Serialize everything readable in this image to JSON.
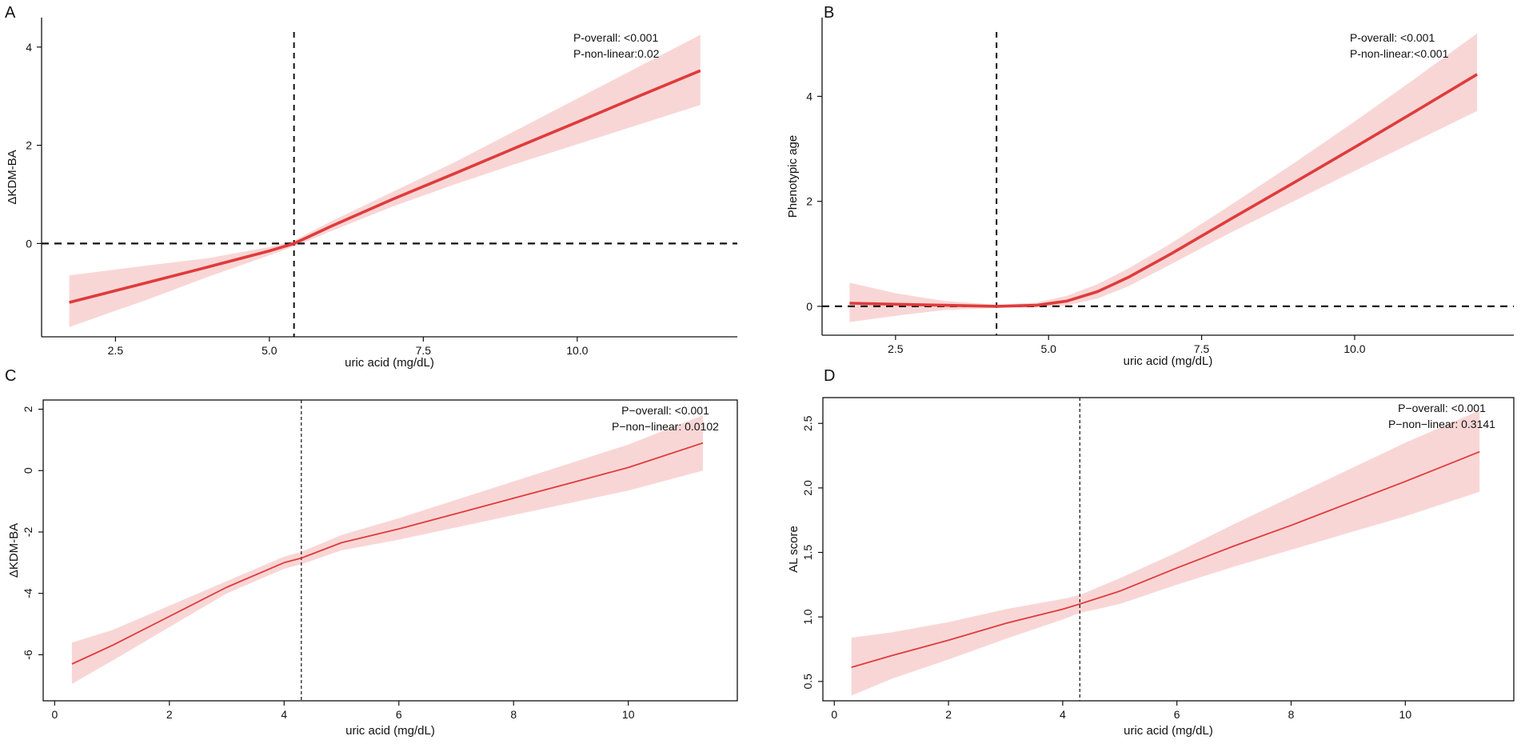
{
  "colors": {
    "line": "#e03b3b",
    "band": "#f9d6d6",
    "axis": "#111111",
    "reference": "#111111"
  },
  "chart_data": [
    {
      "type": "line",
      "panel": "A",
      "xlabel": "uric acid (mg/dL)",
      "ylabel": "ΔKDM-BA",
      "xlim": [
        1.3,
        12.6
      ],
      "ylim": [
        -1.9,
        4.6
      ],
      "xticks": [
        2.5,
        5.0,
        7.5,
        10.0
      ],
      "xtick_labels": [
        "2.5",
        "5.0",
        "7.5",
        "10.0"
      ],
      "yticks": [
        0,
        2,
        4
      ],
      "ytick_labels": [
        "0",
        "2",
        "4"
      ],
      "box": "left-bottom",
      "stroke": "thick",
      "vline": 5.4,
      "hline": 0,
      "annotation": [
        "P-overall: <0.001",
        "P-non-linear:0.02"
      ],
      "series": [
        {
          "name": "estimate",
          "x": [
            1.75,
            3,
            4,
            5,
            5.4,
            6,
            7,
            8,
            9,
            10,
            11,
            12
          ],
          "y": [
            -1.2,
            -0.8,
            -0.48,
            -0.15,
            0.0,
            0.35,
            0.9,
            1.42,
            1.95,
            2.47,
            3.0,
            3.52
          ]
        },
        {
          "name": "ci_upper",
          "x": [
            1.75,
            3,
            4,
            5,
            5.4,
            6,
            7,
            8,
            9,
            10,
            11,
            12
          ],
          "y": [
            -0.65,
            -0.45,
            -0.3,
            -0.07,
            0.06,
            0.45,
            1.05,
            1.65,
            2.3,
            2.95,
            3.6,
            4.25
          ]
        },
        {
          "name": "ci_lower",
          "x": [
            1.75,
            3,
            4,
            5,
            5.4,
            6,
            7,
            8,
            9,
            10,
            11,
            12
          ],
          "y": [
            -1.7,
            -1.15,
            -0.68,
            -0.24,
            -0.06,
            0.25,
            0.75,
            1.2,
            1.62,
            2.02,
            2.42,
            2.82
          ]
        }
      ]
    },
    {
      "type": "line",
      "panel": "B",
      "xlabel": "uric acid (mg/dL)",
      "ylabel": "Phenotypic age",
      "xlim": [
        1.3,
        12.6
      ],
      "ylim": [
        -0.55,
        5.5
      ],
      "xticks": [
        2.5,
        5.0,
        7.5,
        10.0
      ],
      "xtick_labels": [
        "2.5",
        "5.0",
        "7.5",
        "10.0"
      ],
      "yticks": [
        0,
        2,
        4
      ],
      "ytick_labels": [
        "0",
        "2",
        "4"
      ],
      "box": "left-bottom",
      "stroke": "thick",
      "vline": 4.15,
      "hline": 0,
      "annotation": [
        "P-overall: <0.001",
        "P-non-linear:<0.001"
      ],
      "series": [
        {
          "name": "estimate",
          "x": [
            1.75,
            2.5,
            3.3,
            4.15,
            4.8,
            5.3,
            5.8,
            6.3,
            7,
            8,
            9,
            10,
            11,
            12
          ],
          "y": [
            0.06,
            0.04,
            0.02,
            0.0,
            0.02,
            0.1,
            0.28,
            0.55,
            1.0,
            1.68,
            2.35,
            3.03,
            3.72,
            4.42
          ]
        },
        {
          "name": "ci_upper",
          "x": [
            1.75,
            2.5,
            3.3,
            4.15,
            4.8,
            5.3,
            5.8,
            6.3,
            7,
            8,
            9,
            10,
            11,
            12
          ],
          "y": [
            0.45,
            0.25,
            0.1,
            0.03,
            0.07,
            0.2,
            0.42,
            0.72,
            1.2,
            1.95,
            2.72,
            3.52,
            4.35,
            5.2
          ]
        },
        {
          "name": "ci_lower",
          "x": [
            1.75,
            2.5,
            3.3,
            4.15,
            4.8,
            5.3,
            5.8,
            6.3,
            7,
            8,
            9,
            10,
            11,
            12
          ],
          "y": [
            -0.3,
            -0.18,
            -0.07,
            -0.03,
            -0.02,
            0.02,
            0.15,
            0.38,
            0.8,
            1.42,
            2.0,
            2.58,
            3.15,
            3.72
          ]
        }
      ]
    },
    {
      "type": "line",
      "panel": "C",
      "xlabel": "uric acid (mg/dL)",
      "ylabel": "ΔKDM-BA",
      "xlim": [
        -0.2,
        11.9
      ],
      "ylim": [
        -7.5,
        2.3
      ],
      "xticks": [
        0,
        2,
        4,
        6,
        8,
        10
      ],
      "xtick_labels": [
        "0",
        "2",
        "4",
        "6",
        "8",
        "10"
      ],
      "yticks": [
        -6,
        -4,
        -2,
        0,
        2
      ],
      "ytick_labels": [
        "-6",
        "-4",
        "-2",
        "0",
        "2"
      ],
      "box": "full",
      "stroke": "thin",
      "vline": 4.3,
      "hline": null,
      "annotation": [
        "P−overall: <0.001",
        "P−non−linear: 0.0102"
      ],
      "series": [
        {
          "name": "estimate",
          "x": [
            0.3,
            1,
            2,
            3,
            4,
            4.3,
            5,
            6,
            7,
            8,
            9,
            10,
            11.3
          ],
          "y": [
            -6.3,
            -5.7,
            -4.75,
            -3.8,
            -3.0,
            -2.85,
            -2.35,
            -1.9,
            -1.4,
            -0.9,
            -0.4,
            0.1,
            0.9
          ]
        },
        {
          "name": "ci_upper",
          "x": [
            0.3,
            1,
            2,
            3,
            4,
            4.3,
            5,
            6,
            7,
            8,
            9,
            10,
            11.3
          ],
          "y": [
            -5.6,
            -5.2,
            -4.4,
            -3.6,
            -2.8,
            -2.65,
            -2.1,
            -1.55,
            -0.95,
            -0.35,
            0.25,
            0.85,
            1.8
          ]
        },
        {
          "name": "ci_lower",
          "x": [
            0.3,
            1,
            2,
            3,
            4,
            4.3,
            5,
            6,
            7,
            8,
            9,
            10,
            11.3
          ],
          "y": [
            -6.95,
            -6.2,
            -5.1,
            -4.0,
            -3.2,
            -3.05,
            -2.6,
            -2.25,
            -1.85,
            -1.45,
            -1.05,
            -0.65,
            0.0
          ]
        }
      ]
    },
    {
      "type": "line",
      "panel": "D",
      "xlabel": "uric acid (mg/dL)",
      "ylabel": "AL score",
      "xlim": [
        -0.2,
        11.9
      ],
      "ylim": [
        0.35,
        2.7
      ],
      "xticks": [
        0,
        2,
        4,
        6,
        8,
        10
      ],
      "xtick_labels": [
        "0",
        "2",
        "4",
        "6",
        "8",
        "10"
      ],
      "yticks": [
        0.5,
        1.0,
        1.5,
        2.0,
        2.5
      ],
      "ytick_labels": [
        "0.5",
        "1.0",
        "1.5",
        "2.0",
        "2.5"
      ],
      "box": "full",
      "stroke": "thin",
      "vline": 4.3,
      "hline": null,
      "annotation": [
        "P−overall: <0.001",
        "P−non−linear: 0.3141"
      ],
      "series": [
        {
          "name": "estimate",
          "x": [
            0.3,
            1,
            2,
            3,
            4,
            4.3,
            5,
            6,
            7,
            8,
            9,
            10,
            11.3
          ],
          "y": [
            0.61,
            0.7,
            0.82,
            0.95,
            1.06,
            1.1,
            1.2,
            1.38,
            1.55,
            1.71,
            1.88,
            2.05,
            2.28
          ]
        },
        {
          "name": "ci_upper",
          "x": [
            0.3,
            1,
            2,
            3,
            4,
            4.3,
            5,
            6,
            7,
            8,
            9,
            10,
            11.3
          ],
          "y": [
            0.84,
            0.88,
            0.96,
            1.06,
            1.14,
            1.17,
            1.3,
            1.5,
            1.72,
            1.93,
            2.14,
            2.35,
            2.6
          ]
        },
        {
          "name": "ci_lower",
          "x": [
            0.3,
            1,
            2,
            3,
            4,
            4.3,
            5,
            6,
            7,
            8,
            9,
            10,
            11.3
          ],
          "y": [
            0.39,
            0.52,
            0.67,
            0.83,
            0.98,
            1.03,
            1.1,
            1.25,
            1.39,
            1.52,
            1.65,
            1.78,
            1.97
          ]
        }
      ]
    }
  ]
}
